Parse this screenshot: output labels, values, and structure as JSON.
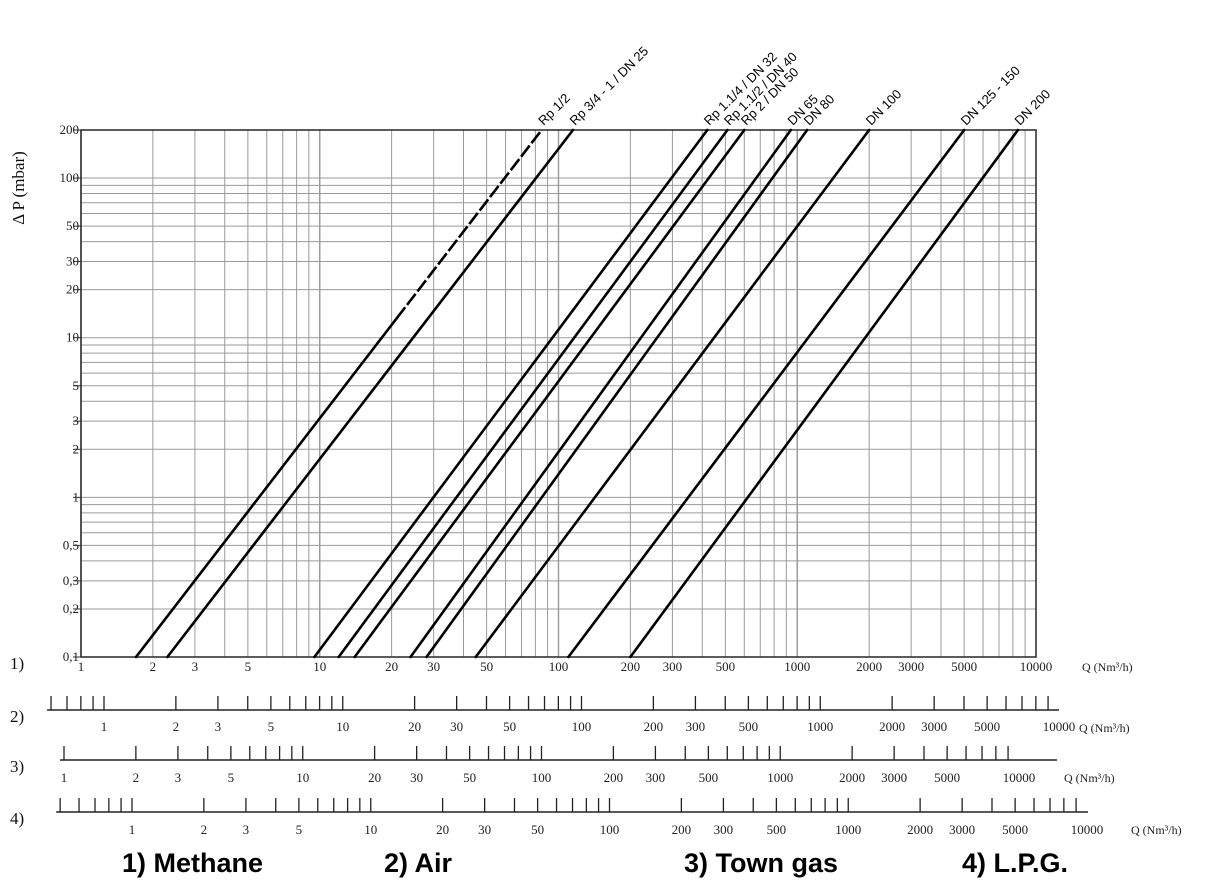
{
  "chart_data": {
    "type": "line",
    "title": "",
    "ylabel": "Δ P (mbar)",
    "xlabel": "Q (Nm³/h)",
    "x_scale": "log",
    "y_scale": "log",
    "xlim": [
      1,
      10000
    ],
    "ylim": [
      0.1,
      200
    ],
    "grid": true,
    "y_ticks": [
      {
        "value": 0.1,
        "label": "0,1"
      },
      {
        "value": 0.2,
        "label": "0,2"
      },
      {
        "value": 0.3,
        "label": "0,3"
      },
      {
        "value": 0.5,
        "label": "0,5"
      },
      {
        "value": 1,
        "label": "1"
      },
      {
        "value": 2,
        "label": "2"
      },
      {
        "value": 3,
        "label": "3"
      },
      {
        "value": 5,
        "label": "5"
      },
      {
        "value": 10,
        "label": "10"
      },
      {
        "value": 20,
        "label": "20"
      },
      {
        "value": 30,
        "label": "30"
      },
      {
        "value": 50,
        "label": "50"
      },
      {
        "value": 100,
        "label": "100"
      },
      {
        "value": 200,
        "label": "200"
      }
    ],
    "series": [
      {
        "name": "Rp 1/2",
        "x": [
          1.7,
          85
        ],
        "y": [
          0.1,
          200
        ],
        "dashed_from_x": 21
      },
      {
        "name": "Rp 3/4 - 1 / DN 25",
        "x": [
          2.3,
          115
        ],
        "y": [
          0.1,
          200
        ]
      },
      {
        "name": "Rp 1.1/4 / DN 32",
        "x": [
          9.5,
          420
        ],
        "y": [
          0.1,
          200
        ]
      },
      {
        "name": "Rp 1.1/2 / DN 40",
        "x": [
          12,
          510
        ],
        "y": [
          0.1,
          200
        ]
      },
      {
        "name": "Rp 2 / DN 50",
        "x": [
          14,
          600
        ],
        "y": [
          0.1,
          200
        ]
      },
      {
        "name": "DN 65",
        "x": [
          24,
          940
        ],
        "y": [
          0.1,
          200
        ]
      },
      {
        "name": "DN 80",
        "x": [
          28,
          1100
        ],
        "y": [
          0.1,
          200
        ]
      },
      {
        "name": "DN 100",
        "x": [
          45,
          2000
        ],
        "y": [
          0.1,
          200
        ]
      },
      {
        "name": "DN 125 - 150",
        "x": [
          110,
          5000
        ],
        "y": [
          0.1,
          200
        ]
      },
      {
        "name": "DN 200",
        "x": [
          200,
          8400
        ],
        "y": [
          0.1,
          200
        ]
      }
    ],
    "x_scales": [
      {
        "id": "1)",
        "gas": "Methane",
        "unit": "Q (Nm³/h)",
        "labels": [
          {
            "value": 1,
            "label": "1"
          },
          {
            "value": 2,
            "label": "2"
          },
          {
            "value": 3,
            "label": "3"
          },
          {
            "value": 5,
            "label": "5"
          },
          {
            "value": 10,
            "label": "10"
          },
          {
            "value": 20,
            "label": "20"
          },
          {
            "value": 30,
            "label": "30"
          },
          {
            "value": 50,
            "label": "50"
          },
          {
            "value": 100,
            "label": "100"
          },
          {
            "value": 200,
            "label": "200"
          },
          {
            "value": 300,
            "label": "300"
          },
          {
            "value": 500,
            "label": "500"
          },
          {
            "value": 1000,
            "label": "1000"
          },
          {
            "value": 2000,
            "label": "2000"
          },
          {
            "value": 3000,
            "label": "3000"
          },
          {
            "value": 5000,
            "label": "5000"
          },
          {
            "value": 10000,
            "label": "10000"
          }
        ]
      },
      {
        "id": "2)",
        "gas": "Air",
        "unit": "Q (Nm³/h)",
        "axis_range": [
          0.6,
          10000
        ],
        "labels": [
          {
            "value": 1,
            "label": "1"
          },
          {
            "value": 2,
            "label": "2"
          },
          {
            "value": 3,
            "label": "3"
          },
          {
            "value": 5,
            "label": "5"
          },
          {
            "value": 10,
            "label": "10"
          },
          {
            "value": 20,
            "label": "20"
          },
          {
            "value": 30,
            "label": "30"
          },
          {
            "value": 50,
            "label": "50"
          },
          {
            "value": 100,
            "label": "100"
          },
          {
            "value": 200,
            "label": "200"
          },
          {
            "value": 300,
            "label": "300"
          },
          {
            "value": 500,
            "label": "500"
          },
          {
            "value": 1000,
            "label": "1000"
          },
          {
            "value": 2000,
            "label": "2000"
          },
          {
            "value": 3000,
            "label": "3000"
          },
          {
            "value": 5000,
            "label": "5000"
          },
          {
            "value": 10000,
            "label": "10000"
          }
        ]
      },
      {
        "id": "3)",
        "gas": "Town gas",
        "unit": "Q (Nm³/h)",
        "axis_range": [
          1,
          10000
        ],
        "labels": [
          {
            "value": 1,
            "label": "1"
          },
          {
            "value": 2,
            "label": "2"
          },
          {
            "value": 3,
            "label": "3"
          },
          {
            "value": 5,
            "label": "5"
          },
          {
            "value": 10,
            "label": "10"
          },
          {
            "value": 20,
            "label": "20"
          },
          {
            "value": 30,
            "label": "30"
          },
          {
            "value": 50,
            "label": "50"
          },
          {
            "value": 100,
            "label": "100"
          },
          {
            "value": 200,
            "label": "200"
          },
          {
            "value": 300,
            "label": "300"
          },
          {
            "value": 500,
            "label": "500"
          },
          {
            "value": 1000,
            "label": "1000"
          },
          {
            "value": 2000,
            "label": "2000"
          },
          {
            "value": 3000,
            "label": "3000"
          },
          {
            "value": 5000,
            "label": "5000"
          },
          {
            "value": 10000,
            "label": "10000"
          }
        ]
      },
      {
        "id": "4)",
        "gas": "L.P.G.",
        "unit": "Q (Nm³/h)",
        "axis_range": [
          0.5,
          10000
        ],
        "labels": [
          {
            "value": 1,
            "label": "1"
          },
          {
            "value": 2,
            "label": "2"
          },
          {
            "value": 3,
            "label": "3"
          },
          {
            "value": 5,
            "label": "5"
          },
          {
            "value": 10,
            "label": "10"
          },
          {
            "value": 20,
            "label": "20"
          },
          {
            "value": 30,
            "label": "30"
          },
          {
            "value": 50,
            "label": "50"
          },
          {
            "value": 100,
            "label": "100"
          },
          {
            "value": 200,
            "label": "200"
          },
          {
            "value": 300,
            "label": "300"
          },
          {
            "value": 500,
            "label": "500"
          },
          {
            "value": 1000,
            "label": "1000"
          },
          {
            "value": 2000,
            "label": "2000"
          },
          {
            "value": 3000,
            "label": "3000"
          },
          {
            "value": 5000,
            "label": "5000"
          },
          {
            "value": 10000,
            "label": "10000"
          }
        ]
      }
    ],
    "legend": [
      "1) Methane",
      "2) Air",
      "3) Town gas",
      "4) L.P.G."
    ]
  }
}
